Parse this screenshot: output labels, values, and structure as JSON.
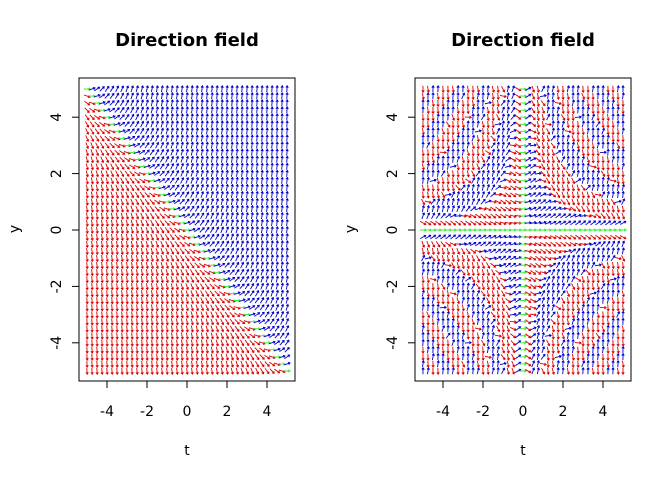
{
  "chart_data": [
    {
      "type": "direction_field",
      "title": "Direction field",
      "xlabel": "t",
      "ylabel": "y",
      "xlim": [
        -5,
        5
      ],
      "ylim": [
        -5,
        5
      ],
      "xticks": [
        -4,
        -2,
        0,
        2,
        4
      ],
      "yticks": [
        -4,
        -2,
        0,
        2,
        4
      ],
      "grid_step": 0.25,
      "slope_function": "t + y",
      "colors": {
        "positive": "#0000cc",
        "negative": "#dd0000",
        "zero": "#33ee33"
      },
      "grid": false
    },
    {
      "type": "direction_field",
      "title": "Direction field",
      "xlabel": "t",
      "ylabel": "y",
      "xlim": [
        -5,
        5
      ],
      "ylim": [
        -5,
        5
      ],
      "xticks": [
        -4,
        -2,
        0,
        2,
        4
      ],
      "yticks": [
        -4,
        -2,
        0,
        2,
        4
      ],
      "grid_step": 0.25,
      "slope_function": "t * y * cos(t * y)",
      "colors": {
        "positive": "#0000cc",
        "negative": "#dd0000",
        "zero": "#33ee33"
      },
      "grid": false
    }
  ]
}
